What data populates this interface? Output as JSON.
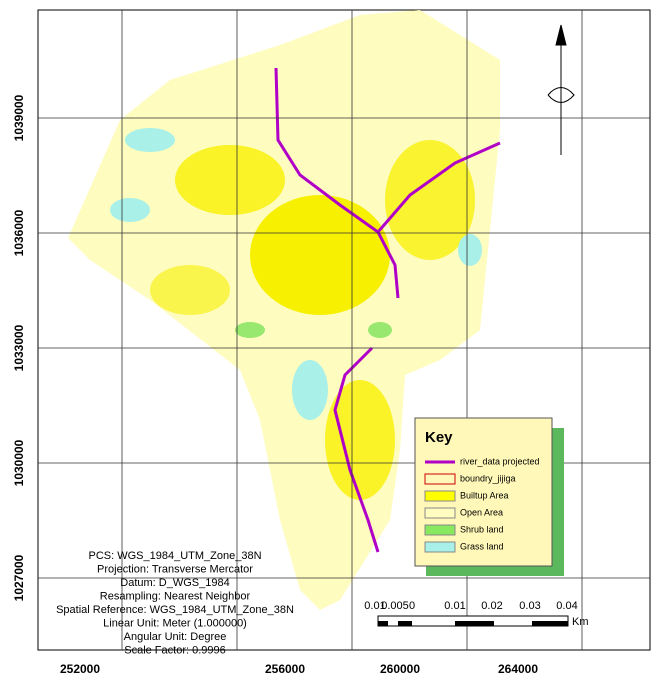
{
  "map": {
    "x_labels": [
      "252000",
      "256000",
      "260000",
      "264000"
    ],
    "y_labels": [
      "1039000",
      "1036000",
      "1033000",
      "1030000",
      "1027000"
    ],
    "legend": {
      "title": "Key",
      "items": [
        "river_data projected",
        "boundry_jijiga",
        "Builtup Area",
        "Open Area",
        "Shrub land",
        "Grass land"
      ]
    },
    "info": [
      "PCS: WGS_1984_UTM_Zone_38N",
      "Projection: Transverse Mercator",
      "Datum: D_WGS_1984",
      "Resampling: Nearest Neighbor",
      "Spatial Reference: WGS_1984_UTM_Zone_38N",
      "Linear Unit: Meter (1.000000)",
      "Angular Unit: Degree",
      "Scale Factor: 0.9996"
    ],
    "scale": {
      "labels": [
        "0.01",
        "0.005",
        "0",
        "0.01",
        "0.02",
        "0.03",
        "0.04"
      ],
      "unit": "Km"
    }
  }
}
